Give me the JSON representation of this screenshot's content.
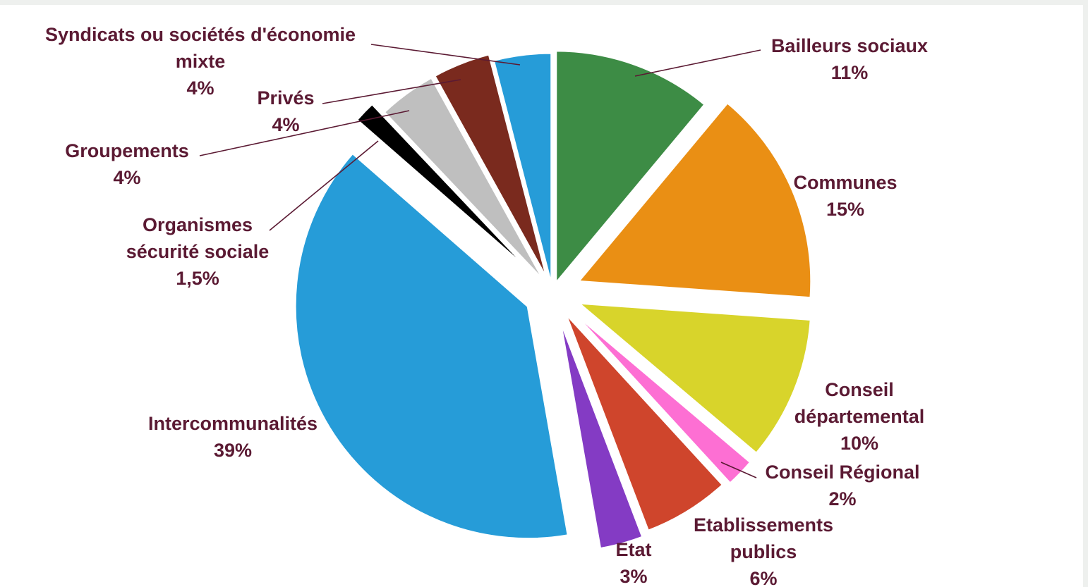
{
  "chart_data": {
    "type": "pie",
    "title": "",
    "legend": "none",
    "slices": [
      {
        "name": "Bailleurs sociaux",
        "value": 11,
        "value_label": "11%",
        "color": "#3d8c45"
      },
      {
        "name": "Communes",
        "value": 15,
        "value_label": "15%",
        "color": "#ea8f14"
      },
      {
        "name": "Conseil départemental",
        "value": 10,
        "value_label": "10%",
        "color": "#d8d42b"
      },
      {
        "name": "Conseil Régional",
        "value": 2,
        "value_label": "2%",
        "color": "#fd6fd3"
      },
      {
        "name": "Etablissements publics",
        "value": 6,
        "value_label": "6%",
        "color": "#cf452c"
      },
      {
        "name": "Etat",
        "value": 3,
        "value_label": "3%",
        "color": "#843bc4"
      },
      {
        "name": "Intercommunalités",
        "value": 39,
        "value_label": "39%",
        "color": "#269cd8"
      },
      {
        "name": "Organismes sécurité sociale",
        "value": 1.5,
        "value_label": "1,5%",
        "color": "#000000"
      },
      {
        "name": "Groupements",
        "value": 4,
        "value_label": "4%",
        "color": "#bfbfbf"
      },
      {
        "name": "Privés",
        "value": 4,
        "value_label": "4%",
        "color": "#7a2a1e"
      },
      {
        "name": "Syndicats ou sociétés d'économie mixte",
        "value": 4,
        "value_label": "4%",
        "color": "#269cd8"
      }
    ]
  }
}
